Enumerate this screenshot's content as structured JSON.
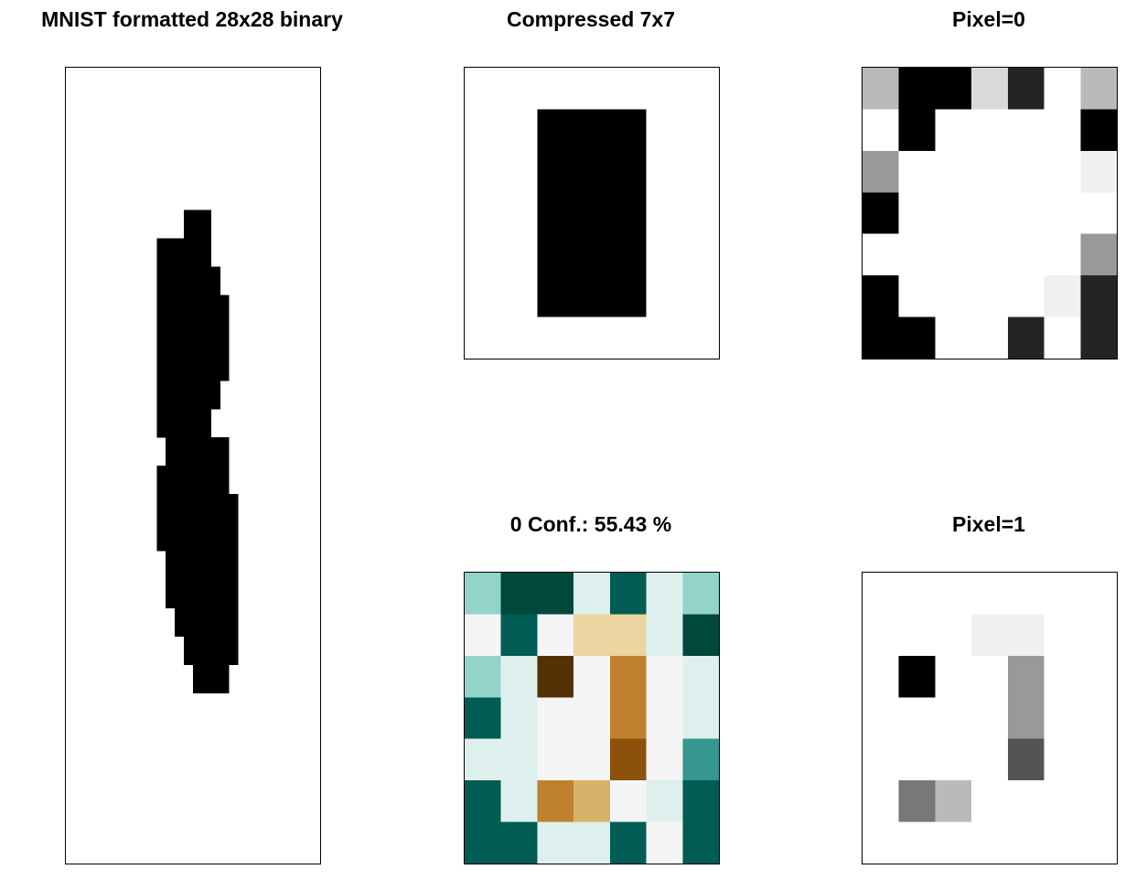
{
  "chart_data": [
    {
      "type": "heatmap",
      "title": "MNIST formatted 28x28 binary",
      "colormap": "binary",
      "rows": 28,
      "cols": 28,
      "note_values": "per-row inked column spans [start, end) in cell units; 1 = black",
      "row_spans": [
        [],
        [],
        [],
        [],
        [],
        [
          [
            13,
            16
          ]
        ],
        [
          [
            10,
            16
          ]
        ],
        [
          [
            10,
            17
          ]
        ],
        [
          [
            10,
            18
          ]
        ],
        [
          [
            10,
            18
          ]
        ],
        [
          [
            10,
            18
          ]
        ],
        [
          [
            10,
            17
          ]
        ],
        [
          [
            10,
            16
          ]
        ],
        [
          [
            11,
            18
          ]
        ],
        [
          [
            10,
            18
          ]
        ],
        [
          [
            10,
            19
          ]
        ],
        [
          [
            10,
            19
          ]
        ],
        [
          [
            11,
            19
          ]
        ],
        [
          [
            11,
            19
          ]
        ],
        [
          [
            12,
            19
          ]
        ],
        [
          [
            13,
            19
          ]
        ],
        [
          [
            14,
            18
          ]
        ],
        [],
        [],
        [],
        [],
        [],
        []
      ]
    },
    {
      "type": "heatmap",
      "title": "Compressed 7x7",
      "colormap": "binary",
      "rows": 7,
      "cols": 7,
      "values": [
        [
          0,
          0,
          0,
          0,
          0,
          0,
          0
        ],
        [
          0,
          0,
          1,
          1,
          1,
          0,
          0
        ],
        [
          0,
          0,
          1,
          1,
          1,
          0,
          0
        ],
        [
          0,
          0,
          1,
          1,
          1,
          0,
          0
        ],
        [
          0,
          0,
          1,
          1,
          1,
          0,
          0
        ],
        [
          0,
          0,
          1,
          1,
          1,
          0,
          0
        ],
        [
          0,
          0,
          0,
          0,
          0,
          0,
          0
        ]
      ]
    },
    {
      "type": "heatmap",
      "title": "Pixel=0",
      "colormap": "gray",
      "rows": 7,
      "cols": 7,
      "values": [
        [
          0.27,
          1.0,
          1.0,
          0.15,
          0.86,
          0.0,
          0.27
        ],
        [
          0.0,
          1.0,
          0.0,
          0.0,
          0.0,
          0.0,
          1.0
        ],
        [
          0.4,
          0.0,
          0.0,
          0.0,
          0.0,
          0.0,
          0.06
        ],
        [
          1.0,
          0.0,
          0.0,
          0.0,
          0.0,
          0.0,
          0.0
        ],
        [
          0.0,
          0.0,
          0.0,
          0.0,
          0.0,
          0.0,
          0.4
        ],
        [
          1.0,
          0.0,
          0.0,
          0.0,
          0.0,
          0.06,
          0.86
        ],
        [
          1.0,
          1.0,
          0.0,
          0.0,
          0.86,
          0.0,
          0.86
        ]
      ]
    },
    {
      "type": "heatmap",
      "title": "0 Conf.: 55.43 %",
      "colormap": "BrBG",
      "rows": 7,
      "cols": 7,
      "palette": [
        "#543005",
        "#8c510a",
        "#bf812d",
        "#dfc27d",
        "#f6e8c3",
        "#f5f5f5",
        "#c7eae5",
        "#80cdc1",
        "#35978f",
        "#01665e",
        "#003c30"
      ],
      "values": [
        [
          0.35,
          0.95,
          0.95,
          0.1,
          0.85,
          0.1,
          0.35
        ],
        [
          0.0,
          0.85,
          0.0,
          -0.3,
          -0.3,
          0.1,
          0.95
        ],
        [
          0.35,
          0.1,
          -1.0,
          0.0,
          -0.6,
          0.0,
          0.1
        ],
        [
          0.85,
          0.1,
          0.0,
          0.0,
          -0.6,
          0.0,
          0.1
        ],
        [
          0.1,
          0.1,
          0.0,
          0.0,
          -0.8,
          0.0,
          0.6
        ],
        [
          0.85,
          0.1,
          -0.6,
          -0.45,
          0.0,
          0.1,
          0.85
        ],
        [
          0.85,
          0.85,
          0.1,
          0.1,
          0.85,
          0.0,
          0.85
        ]
      ]
    },
    {
      "type": "heatmap",
      "title": "Pixel=1",
      "colormap": "gray",
      "rows": 7,
      "cols": 7,
      "values": [
        [
          0.0,
          0.0,
          0.0,
          0.0,
          0.0,
          0.0,
          0.0
        ],
        [
          0.0,
          0.0,
          0.0,
          0.06,
          0.06,
          0.0,
          0.0
        ],
        [
          0.0,
          1.0,
          0.0,
          0.0,
          0.4,
          0.0,
          0.0
        ],
        [
          0.0,
          0.0,
          0.0,
          0.0,
          0.4,
          0.0,
          0.0
        ],
        [
          0.0,
          0.0,
          0.0,
          0.0,
          0.67,
          0.0,
          0.0
        ],
        [
          0.0,
          0.53,
          0.27,
          0.0,
          0.0,
          0.0,
          0.0
        ],
        [
          0.0,
          0.0,
          0.0,
          0.0,
          0.0,
          0.0,
          0.0
        ]
      ]
    }
  ]
}
